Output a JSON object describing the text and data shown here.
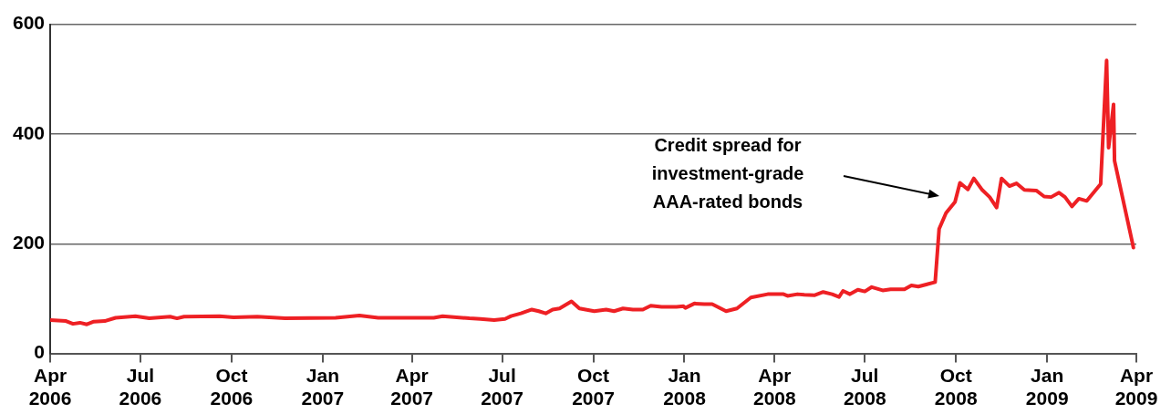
{
  "chart_data": {
    "type": "line",
    "x": [
      "2006-04-01",
      "2006-04-17",
      "2006-04-24",
      "2006-05-01",
      "2006-05-08",
      "2006-05-15",
      "2006-05-26",
      "2006-06-06",
      "2006-06-26",
      "2006-07-10",
      "2006-07-31",
      "2006-08-07",
      "2006-08-14",
      "2006-09-19",
      "2006-10-03",
      "2006-10-27",
      "2006-11-24",
      "2007-01-14",
      "2007-02-07",
      "2007-02-26",
      "2007-04-23",
      "2007-05-02",
      "2007-05-29",
      "2007-06-09",
      "2007-06-23",
      "2007-07-04",
      "2007-07-10",
      "2007-07-20",
      "2007-07-31",
      "2007-08-07",
      "2007-08-14",
      "2007-08-21",
      "2007-08-28",
      "2007-09-09",
      "2007-09-17",
      "2007-10-02",
      "2007-10-14",
      "2007-10-22",
      "2007-10-31",
      "2007-11-10",
      "2007-11-20",
      "2007-11-28",
      "2007-12-09",
      "2007-12-24",
      "2007-12-31",
      "2008-01-02",
      "2008-01-11",
      "2008-01-21",
      "2008-01-29",
      "2008-02-12",
      "2008-02-23",
      "2008-03-08",
      "2008-03-25",
      "2008-04-10",
      "2008-04-14",
      "2008-04-24",
      "2008-05-01",
      "2008-05-11",
      "2008-05-20",
      "2008-05-29",
      "2008-06-05",
      "2008-06-09",
      "2008-06-16",
      "2008-06-24",
      "2008-07-01",
      "2008-07-08",
      "2008-07-19",
      "2008-07-27",
      "2008-08-10",
      "2008-08-17",
      "2008-08-24",
      "2008-09-10",
      "2008-09-14",
      "2008-09-21",
      "2008-09-30",
      "2008-10-05",
      "2008-10-13",
      "2008-10-19",
      "2008-10-27",
      "2008-11-04",
      "2008-11-11",
      "2008-11-16",
      "2008-11-24",
      "2008-12-01",
      "2008-12-09",
      "2008-12-21",
      "2008-12-29",
      "2009-01-05",
      "2009-01-13",
      "2009-01-19",
      "2009-01-26",
      "2009-02-02",
      "2009-02-10",
      "2009-02-24",
      "2009-03-02",
      "2009-03-04",
      "2009-03-09",
      "2009-03-10",
      "2009-03-28",
      "2009-03-29"
    ],
    "series": [
      {
        "color": "#ee2024",
        "values": [
          61,
          59,
          54,
          56,
          53,
          58,
          59,
          65,
          68,
          64,
          67,
          64,
          67,
          68,
          66,
          67,
          64,
          65,
          69,
          65,
          65,
          68,
          64,
          63,
          61,
          63,
          68,
          73,
          80,
          77,
          73,
          80,
          82,
          95,
          82,
          77,
          80,
          77,
          82,
          80,
          80,
          87,
          85,
          85,
          86,
          83,
          91,
          90,
          90,
          77,
          82,
          102,
          108,
          108,
          105,
          108,
          107,
          106,
          112,
          108,
          103,
          114,
          108,
          116,
          113,
          121,
          115,
          117,
          117,
          124,
          122,
          130,
          227,
          256,
          276,
          311,
          299,
          319,
          299,
          285,
          266,
          319,
          305,
          310,
          298,
          297,
          286,
          285,
          293,
          285,
          268,
          282,
          278,
          309,
          534,
          375,
          454,
          351,
          202,
          193
        ]
      }
    ],
    "xlim": [
      "2006-04-01",
      "2009-04-01"
    ],
    "xticks": [
      {
        "value": "2006-04-01",
        "label": "Apr 2006"
      },
      {
        "value": "2006-07-01",
        "label": "Jul 2006"
      },
      {
        "value": "2006-10-01",
        "label": "Oct 2006"
      },
      {
        "value": "2007-01-01",
        "label": "Jan 2007"
      },
      {
        "value": "2007-04-01",
        "label": "Apr 2007"
      },
      {
        "value": "2007-07-01",
        "label": "Jul 2007"
      },
      {
        "value": "2007-10-01",
        "label": "Oct 2007"
      },
      {
        "value": "2008-01-01",
        "label": "Jan 2008"
      },
      {
        "value": "2008-04-01",
        "label": "Apr 2008"
      },
      {
        "value": "2008-07-01",
        "label": "Jul 2008"
      },
      {
        "value": "2008-10-01",
        "label": "Oct 2008"
      },
      {
        "value": "2009-01-01",
        "label": "Jan 2009"
      },
      {
        "value": "2009-04-01",
        "label": "Apr 2009"
      }
    ],
    "ylim": [
      0,
      600
    ],
    "yticks": [
      0,
      200,
      400,
      600
    ],
    "grid": "y",
    "legend": false,
    "marker": "none",
    "line_style": "solid",
    "annotations": [
      "Credit spread for\ninvestment-grade\nAAA-rated bonds"
    ]
  }
}
